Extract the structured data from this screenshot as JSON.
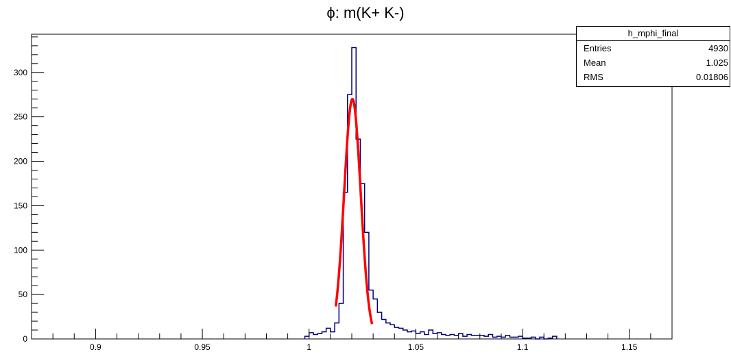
{
  "chart_data": {
    "type": "histogram",
    "title": "ϕ: m(K+ K-)",
    "xlabel": "",
    "ylabel": "",
    "xlim": [
      0.87,
      1.17
    ],
    "ylim": [
      0,
      343
    ],
    "x_ticks": [
      0.9,
      0.95,
      1.0,
      1.05,
      1.1,
      1.15
    ],
    "x_tick_labels": [
      "0.9",
      "0.95",
      "1",
      "1.05",
      "1.1",
      "1.15"
    ],
    "y_ticks": [
      0,
      50,
      100,
      150,
      200,
      250,
      300
    ],
    "y_tick_labels": [
      "0",
      "50",
      "100",
      "150",
      "200",
      "250",
      "300"
    ],
    "grid": false,
    "colors": {
      "histogram": "#000080",
      "fit": "#ff0000"
    },
    "histogram": {
      "bin_width": 0.002,
      "x_start": 0.998,
      "counts": [
        3,
        7,
        5,
        6,
        8,
        12,
        8,
        18,
        40,
        165,
        275,
        328,
        225,
        175,
        120,
        55,
        45,
        30,
        22,
        18,
        16,
        13,
        12,
        10,
        8,
        9,
        6,
        8,
        5,
        10,
        6,
        7,
        5,
        4,
        5,
        4,
        6,
        3,
        5,
        4,
        4,
        4,
        3,
        5,
        2,
        3,
        2,
        4,
        2,
        2,
        3,
        1,
        1,
        2,
        0,
        2,
        0,
        1,
        3
      ]
    },
    "fit": {
      "type": "gaussian",
      "x_range": [
        1.0125,
        1.0295
      ],
      "peak": 270,
      "mean": 1.0203,
      "sigma": 0.0039
    },
    "stats": {
      "name": "h_mphi_final",
      "rows": [
        {
          "label": "Entries",
          "value": "4930"
        },
        {
          "label": "Mean",
          "value": "1.025"
        },
        {
          "label": "RMS",
          "value": "0.01806"
        }
      ]
    }
  }
}
